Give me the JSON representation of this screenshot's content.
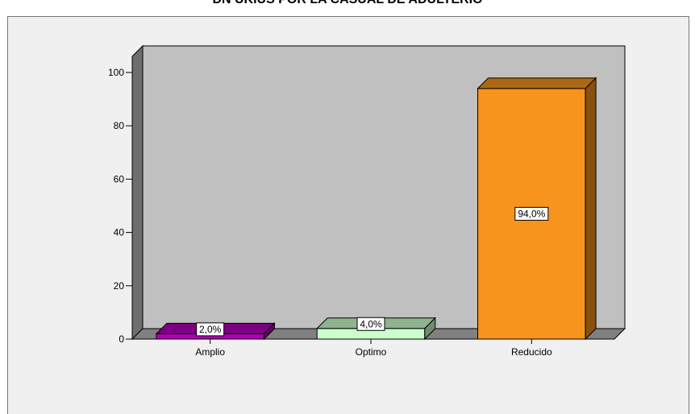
{
  "title": "DN UKIUS POR LA CASUAL DE ADULTERIO",
  "chart_data": {
    "type": "bar",
    "categories": [
      "Amplio",
      "Optimo",
      "Reducido"
    ],
    "values": [
      2.0,
      4.0,
      94.0
    ],
    "data_labels": [
      "2,0%",
      "4,0%",
      "94,0%"
    ],
    "ylim": [
      0,
      100
    ],
    "yticks": [
      "0",
      "20",
      "40",
      "60",
      "80",
      "100"
    ],
    "grid": false,
    "colors": {
      "Amplio": "#b000b8",
      "Optimo": "#ccffcc",
      "Reducido": "#f7941d",
      "backwall": "#c0c0c0",
      "floor": "#808080",
      "sidewall": "#6e6e6e",
      "frame": "#f0f0f0"
    }
  }
}
